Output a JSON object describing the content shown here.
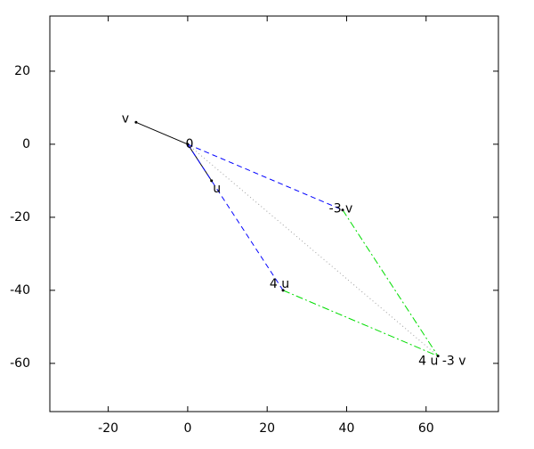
{
  "chart_data": {
    "type": "vector",
    "xlim": [
      -34.7,
      78.2
    ],
    "ylim": [
      -73.2,
      35.1
    ],
    "xticks": [
      -20,
      0,
      20,
      40,
      60
    ],
    "yticks": [
      -60,
      -40,
      -20,
      0,
      20
    ],
    "grid": false,
    "points": [
      {
        "label": "v",
        "x": -13,
        "y": 6
      },
      {
        "label": "0",
        "x": 0,
        "y": 0
      },
      {
        "label": "u",
        "x": 6,
        "y": -10
      },
      {
        "label": "-3 v",
        "x": 39,
        "y": -18
      },
      {
        "label": "4 u",
        "x": 24,
        "y": -40
      },
      {
        "label": "4 u -3 v",
        "x": 63,
        "y": -58
      }
    ],
    "series": [
      {
        "color": "#000000",
        "dash": "solid",
        "x": [
          0,
          -13
        ],
        "y": [
          0,
          6
        ]
      },
      {
        "color": "#000000",
        "dash": "solid",
        "x": [
          0,
          6
        ],
        "y": [
          0,
          -10
        ]
      },
      {
        "color": "#0000ff",
        "dash": "dashed",
        "x": [
          0,
          39
        ],
        "y": [
          0,
          -18
        ]
      },
      {
        "color": "#0000ff",
        "dash": "dashed",
        "x": [
          0,
          24
        ],
        "y": [
          0,
          -40
        ]
      },
      {
        "color": "#00dd00",
        "dash": "dashdot",
        "x": [
          39,
          63
        ],
        "y": [
          -18,
          -58
        ]
      },
      {
        "color": "#00dd00",
        "dash": "dashdot",
        "x": [
          24,
          63
        ],
        "y": [
          -40,
          -58
        ]
      },
      {
        "color": "#a0a0a0",
        "dash": "dotted",
        "x": [
          0,
          63
        ],
        "y": [
          0,
          -58
        ]
      }
    ]
  }
}
